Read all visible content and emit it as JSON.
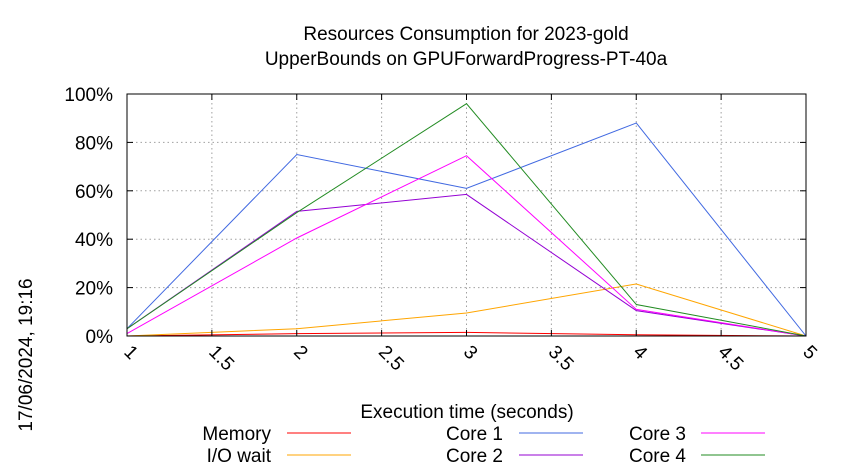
{
  "chart_data": {
    "type": "line",
    "title": "Resources Consumption for 2023-gold",
    "subtitle": "UpperBounds on GPUForwardProgress-PT-40a",
    "xlabel": "Execution time (seconds)",
    "ylabel": "",
    "xlim": [
      1,
      5
    ],
    "ylim": [
      0,
      100
    ],
    "x_ticks": [
      1,
      1.5,
      2,
      2.5,
      3,
      3.5,
      4,
      4.5,
      5
    ],
    "x_tick_labels": [
      "1",
      "1.5",
      "2",
      "2.5",
      "3",
      "3.5",
      "4",
      "4.5",
      "5"
    ],
    "y_ticks": [
      0,
      20,
      40,
      60,
      80,
      100
    ],
    "y_tick_labels": [
      "0%",
      "20%",
      "40%",
      "60%",
      "80%",
      "100%"
    ],
    "grid": true,
    "legend_position": "bottom",
    "timestamp": "17/06/2024, 19:16",
    "x": [
      1,
      2,
      3,
      4,
      5
    ],
    "series": [
      {
        "name": "Memory",
        "color": "#ff0000",
        "values": [
          0,
          1,
          1.5,
          0.5,
          0
        ]
      },
      {
        "name": "I/O wait",
        "color": "#ffa500",
        "values": [
          0,
          3,
          9.5,
          21.5,
          0
        ]
      },
      {
        "name": "Core 1",
        "color": "#4169e1",
        "values": [
          3,
          75,
          61,
          88,
          0
        ]
      },
      {
        "name": "Core 2",
        "color": "#9400d3",
        "values": [
          3,
          51.5,
          58.5,
          10.5,
          0
        ]
      },
      {
        "name": "Core 3",
        "color": "#ff00ff",
        "values": [
          1,
          40.5,
          74.5,
          11,
          0
        ]
      },
      {
        "name": "Core 4",
        "color": "#228b22",
        "values": [
          3,
          51,
          96,
          13,
          0
        ]
      }
    ]
  }
}
